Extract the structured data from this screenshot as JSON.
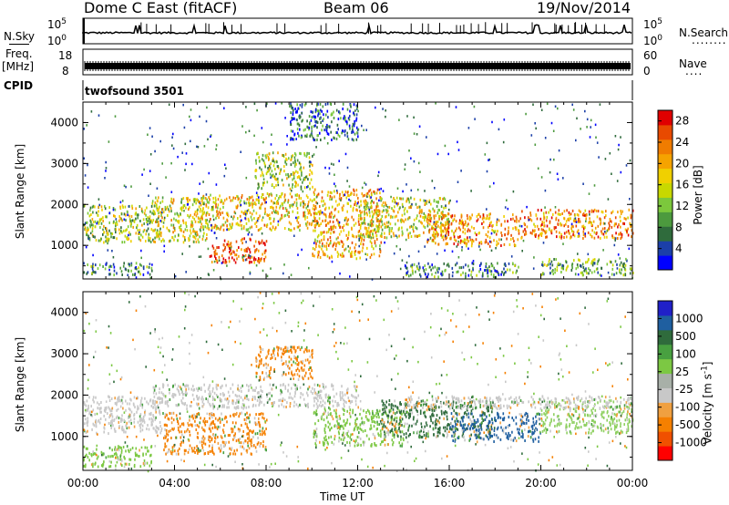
{
  "header": {
    "station": "Dome C East (fitACF)",
    "beam": "Beam 06",
    "date": "19/Nov/2014"
  },
  "nsky_panel": {
    "left_label": "N.Sky",
    "left_ticks": [
      "10^5",
      "10^0"
    ],
    "right_ticks": [
      "10^5",
      "10^0"
    ],
    "right_label": "N.Search",
    "right_legend_dots": "........"
  },
  "freq_panel": {
    "left_label_top": "Freq.",
    "left_label_unit": "[MHz]",
    "left_tick_high": "18",
    "left_tick_low": "8",
    "right_tick_high": "60",
    "right_tick_low": "0",
    "right_label": "Nave",
    "right_legend_dots": "...."
  },
  "cpid_panel": {
    "label": "CPID",
    "value": "twofsound 3501"
  },
  "colors": {
    "power": [
      "#0000ff",
      "#1b3fa8",
      "#2f6b3c",
      "#4c9a3e",
      "#7cc83c",
      "#c8d800",
      "#f0d000",
      "#f5a300",
      "#f07c00",
      "#e84a00",
      "#e00000"
    ],
    "velocity": [
      "#ff0000",
      "#f05000",
      "#f58000",
      "#f0a040",
      "#c8c8c8",
      "#a8b0a8",
      "#7cc843",
      "#48a040",
      "#2f6b3c",
      "#1f5fa0",
      "#2020c8"
    ]
  },
  "chart_data": [
    {
      "type": "heatmap",
      "title": "Power",
      "xlabel": "",
      "ylabel": "Slant Range [km]",
      "x_ticks": [
        "00:00",
        "04:00",
        "08:00",
        "12:00",
        "16:00",
        "20:00",
        "00:00"
      ],
      "y_ticks": [
        1000,
        2000,
        3000,
        4000
      ],
      "ylim": [
        180,
        4500
      ],
      "xlim_hours": [
        0,
        24
      ],
      "colorbar": {
        "label": "Power [dB]",
        "ticks": [
          4,
          8,
          12,
          16,
          20,
          24,
          28
        ],
        "range": [
          0,
          30
        ]
      },
      "regions": [
        {
          "t0": 0.0,
          "t1": 3.5,
          "r0": 1100,
          "r1": 2000,
          "value": 14
        },
        {
          "t0": 0.0,
          "t1": 3.0,
          "r0": 300,
          "r1": 600,
          "value": 8
        },
        {
          "t0": 3.0,
          "t1": 5.5,
          "r0": 1100,
          "r1": 2200,
          "value": 16
        },
        {
          "t0": 5.5,
          "t1": 8.0,
          "r0": 600,
          "r1": 1200,
          "value": 26
        },
        {
          "t0": 5.0,
          "t1": 10.0,
          "r0": 1400,
          "r1": 2300,
          "value": 18
        },
        {
          "t0": 7.5,
          "t1": 10.0,
          "r0": 2400,
          "r1": 3300,
          "value": 14
        },
        {
          "t0": 10.0,
          "t1": 13.0,
          "r0": 700,
          "r1": 2400,
          "value": 20
        },
        {
          "t0": 12.0,
          "t1": 16.0,
          "r0": 1200,
          "r1": 2200,
          "value": 16
        },
        {
          "t0": 15.0,
          "t1": 19.0,
          "r0": 1000,
          "r1": 1800,
          "value": 22
        },
        {
          "t0": 19.0,
          "t1": 24.0,
          "r0": 1200,
          "r1": 1900,
          "value": 22
        },
        {
          "t0": 9.0,
          "t1": 12.0,
          "r0": 3600,
          "r1": 4500,
          "value": 6
        },
        {
          "t0": 14.0,
          "t1": 19.0,
          "r0": 250,
          "r1": 600,
          "value": 8
        },
        {
          "t0": 20.0,
          "t1": 24.0,
          "r0": 300,
          "r1": 700,
          "value": 10
        }
      ]
    },
    {
      "type": "heatmap",
      "title": "Velocity",
      "xlabel": "Time UT",
      "ylabel": "Slant Range [km]",
      "x_ticks": [
        "00:00",
        "04:00",
        "08:00",
        "12:00",
        "16:00",
        "20:00",
        "00:00"
      ],
      "y_ticks": [
        1000,
        2000,
        3000,
        4000
      ],
      "ylim": [
        180,
        4500
      ],
      "xlim_hours": [
        0,
        24
      ],
      "colorbar": {
        "label": "Velocity [m s^-1]",
        "ticks": [
          "1000",
          "500",
          "100",
          "25",
          "-25",
          "-100",
          "-500",
          "-1000"
        ]
      },
      "regions": [
        {
          "t0": 0.0,
          "t1": 3.5,
          "r0": 1100,
          "r1": 2000,
          "value": "gray"
        },
        {
          "t0": 0.0,
          "t1": 3.0,
          "r0": 300,
          "r1": 800,
          "value": "green"
        },
        {
          "t0": 3.5,
          "t1": 8.0,
          "r0": 600,
          "r1": 1600,
          "value": "orange"
        },
        {
          "t0": 7.5,
          "t1": 10.0,
          "r0": 2400,
          "r1": 3200,
          "value": "orange"
        },
        {
          "t0": 3.0,
          "t1": 12.0,
          "r0": 1700,
          "r1": 2300,
          "value": "gray"
        },
        {
          "t0": 10.0,
          "t1": 14.0,
          "r0": 800,
          "r1": 1700,
          "value": "green"
        },
        {
          "t0": 13.0,
          "t1": 18.0,
          "r0": 1000,
          "r1": 1900,
          "value": "darkgreen"
        },
        {
          "t0": 16.0,
          "t1": 20.0,
          "r0": 900,
          "r1": 1600,
          "value": "blue"
        },
        {
          "t0": 20.0,
          "t1": 24.0,
          "r0": 1100,
          "r1": 1900,
          "value": "lightgreen"
        },
        {
          "t0": 14.0,
          "t1": 24.0,
          "r0": 1700,
          "r1": 2000,
          "value": "gray"
        }
      ]
    }
  ]
}
